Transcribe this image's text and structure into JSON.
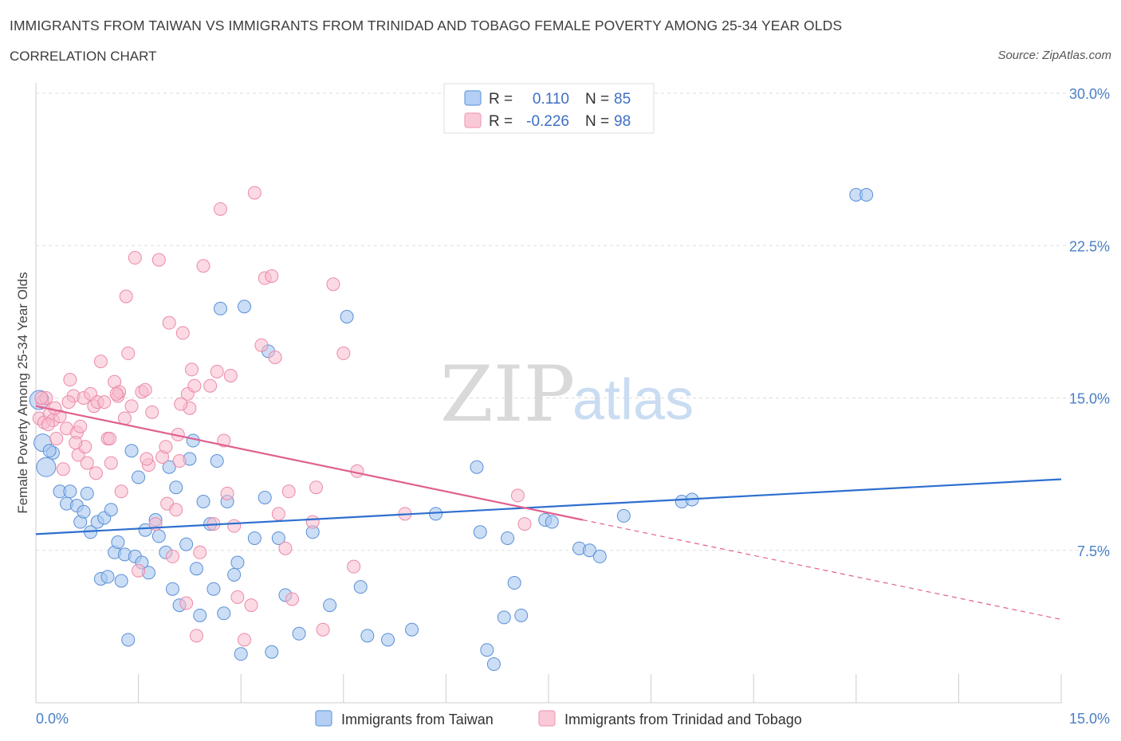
{
  "header": {
    "title": "IMMIGRANTS FROM TAIWAN VS IMMIGRANTS FROM TRINIDAD AND TOBAGO FEMALE POVERTY AMONG 25-34 YEAR OLDS",
    "subtitle": "CORRELATION CHART",
    "source": "Source: ZipAtlas.com"
  },
  "watermark": {
    "zip": "ZIP",
    "atlas": "atlas"
  },
  "legend": {
    "r_label": "R =",
    "n_label": "N =",
    "series": [
      {
        "r": "0.110",
        "n": "85",
        "color": "#6a9fe0"
      },
      {
        "r": "-0.226",
        "n": "98",
        "color": "#f0a0b8"
      }
    ]
  },
  "colors": {
    "taiwan_fill": "#a9c8f0",
    "taiwan_stroke": "#5b8fd6",
    "taiwan_line": "#2e6fcf",
    "trinidad_fill": "#f7bccd",
    "trinidad_stroke": "#ec8aa8",
    "trinidad_line": "#e0608e",
    "grid": "#dddddd",
    "tick_text": "#4a7fc8"
  },
  "chart_data": {
    "type": "scatter",
    "xlabel": "",
    "ylabel": "Female Poverty Among 25-34 Year Olds",
    "xlim": [
      0,
      15
    ],
    "ylim": [
      0,
      30
    ],
    "x_tick_labels": [
      "0.0%",
      "15.0%"
    ],
    "y_tick_labels": [
      "7.5%",
      "15.0%",
      "22.5%",
      "30.0%"
    ],
    "y_tick_values": [
      7.5,
      15,
      22.5,
      30
    ],
    "grid": true,
    "legend_position": "top-center",
    "series": [
      {
        "name": "Immigrants from Taiwan",
        "trend": {
          "x": [
            0,
            15
          ],
          "y": [
            8.3,
            11.0
          ]
        },
        "points": [
          [
            0.05,
            14.9
          ],
          [
            0.1,
            12.8
          ],
          [
            0.15,
            11.6
          ],
          [
            0.25,
            12.3
          ],
          [
            0.35,
            10.4
          ],
          [
            0.45,
            9.8
          ],
          [
            0.5,
            10.4
          ],
          [
            0.6,
            9.7
          ],
          [
            0.65,
            8.9
          ],
          [
            0.7,
            9.4
          ],
          [
            0.75,
            10.3
          ],
          [
            0.8,
            8.4
          ],
          [
            0.9,
            8.9
          ],
          [
            0.95,
            6.1
          ],
          [
            1.0,
            9.1
          ],
          [
            1.1,
            9.5
          ],
          [
            1.15,
            7.4
          ],
          [
            1.2,
            7.9
          ],
          [
            1.25,
            6.0
          ],
          [
            1.3,
            7.3
          ],
          [
            1.35,
            3.1
          ],
          [
            1.4,
            12.4
          ],
          [
            1.45,
            7.2
          ],
          [
            1.5,
            11.1
          ],
          [
            1.55,
            6.9
          ],
          [
            1.6,
            8.5
          ],
          [
            1.65,
            6.4
          ],
          [
            1.75,
            9.0
          ],
          [
            1.8,
            8.2
          ],
          [
            1.9,
            7.4
          ],
          [
            1.95,
            11.6
          ],
          [
            2.0,
            5.6
          ],
          [
            2.05,
            10.6
          ],
          [
            2.1,
            4.8
          ],
          [
            2.2,
            7.8
          ],
          [
            2.25,
            12.0
          ],
          [
            2.3,
            12.9
          ],
          [
            2.35,
            6.6
          ],
          [
            2.4,
            4.3
          ],
          [
            2.45,
            9.9
          ],
          [
            2.55,
            8.8
          ],
          [
            2.6,
            5.6
          ],
          [
            2.65,
            11.9
          ],
          [
            2.7,
            19.4
          ],
          [
            2.75,
            4.4
          ],
          [
            2.8,
            9.9
          ],
          [
            2.9,
            6.3
          ],
          [
            2.95,
            6.9
          ],
          [
            3.0,
            2.4
          ],
          [
            3.05,
            19.5
          ],
          [
            3.2,
            8.1
          ],
          [
            3.35,
            10.1
          ],
          [
            3.4,
            17.3
          ],
          [
            3.45,
            2.5
          ],
          [
            3.55,
            8.1
          ],
          [
            3.65,
            5.3
          ],
          [
            3.85,
            3.4
          ],
          [
            4.05,
            8.4
          ],
          [
            4.3,
            4.8
          ],
          [
            4.55,
            19.0
          ],
          [
            4.75,
            5.7
          ],
          [
            4.85,
            3.3
          ],
          [
            5.15,
            3.1
          ],
          [
            5.5,
            3.6
          ],
          [
            5.85,
            9.3
          ],
          [
            6.45,
            11.6
          ],
          [
            6.5,
            8.4
          ],
          [
            6.6,
            2.6
          ],
          [
            6.7,
            1.9
          ],
          [
            6.85,
            4.2
          ],
          [
            6.9,
            8.1
          ],
          [
            7.0,
            5.9
          ],
          [
            7.1,
            4.3
          ],
          [
            7.45,
            9.0
          ],
          [
            7.55,
            8.9
          ],
          [
            7.95,
            7.6
          ],
          [
            8.1,
            7.5
          ],
          [
            8.25,
            7.2
          ],
          [
            8.6,
            9.2
          ],
          [
            9.45,
            9.9
          ],
          [
            9.6,
            10.0
          ],
          [
            12.0,
            25.0
          ],
          [
            12.15,
            25.0
          ],
          [
            0.2,
            12.4
          ],
          [
            1.05,
            6.2
          ]
        ]
      },
      {
        "name": "Immigrants from Trinidad and Tobago",
        "trend": {
          "x": [
            0,
            8.0
          ],
          "y": [
            14.6,
            9.0
          ]
        },
        "trend_extension": {
          "x": [
            8.0,
            15
          ],
          "y": [
            9.0,
            4.1
          ]
        },
        "points": [
          [
            0.05,
            14.0
          ],
          [
            0.1,
            14.8
          ],
          [
            0.12,
            13.8
          ],
          [
            0.15,
            15.0
          ],
          [
            0.2,
            14.2
          ],
          [
            0.25,
            13.9
          ],
          [
            0.3,
            13.0
          ],
          [
            0.35,
            14.1
          ],
          [
            0.4,
            11.5
          ],
          [
            0.45,
            13.5
          ],
          [
            0.5,
            15.9
          ],
          [
            0.55,
            15.1
          ],
          [
            0.6,
            13.3
          ],
          [
            0.62,
            12.2
          ],
          [
            0.65,
            13.6
          ],
          [
            0.7,
            15.0
          ],
          [
            0.72,
            12.6
          ],
          [
            0.75,
            11.8
          ],
          [
            0.8,
            15.2
          ],
          [
            0.85,
            14.6
          ],
          [
            0.88,
            11.3
          ],
          [
            0.9,
            14.8
          ],
          [
            0.95,
            16.8
          ],
          [
            1.0,
            14.8
          ],
          [
            1.05,
            13.0
          ],
          [
            1.08,
            13.0
          ],
          [
            1.1,
            11.8
          ],
          [
            1.15,
            15.8
          ],
          [
            1.2,
            15.1
          ],
          [
            1.22,
            15.3
          ],
          [
            1.25,
            10.4
          ],
          [
            1.3,
            14.0
          ],
          [
            1.32,
            20.0
          ],
          [
            1.35,
            17.2
          ],
          [
            1.4,
            14.6
          ],
          [
            1.45,
            21.9
          ],
          [
            1.5,
            6.5
          ],
          [
            1.55,
            15.3
          ],
          [
            1.6,
            15.4
          ],
          [
            1.65,
            11.7
          ],
          [
            1.7,
            14.3
          ],
          [
            1.75,
            8.8
          ],
          [
            1.8,
            21.8
          ],
          [
            1.85,
            12.1
          ],
          [
            1.9,
            12.6
          ],
          [
            1.92,
            9.8
          ],
          [
            1.95,
            18.7
          ],
          [
            2.0,
            7.2
          ],
          [
            2.05,
            9.5
          ],
          [
            2.08,
            13.2
          ],
          [
            2.1,
            11.9
          ],
          [
            2.15,
            18.2
          ],
          [
            2.2,
            4.9
          ],
          [
            2.22,
            15.2
          ],
          [
            2.25,
            14.5
          ],
          [
            2.28,
            16.4
          ],
          [
            2.32,
            15.6
          ],
          [
            2.35,
            3.3
          ],
          [
            2.4,
            7.4
          ],
          [
            2.45,
            21.5
          ],
          [
            2.55,
            15.6
          ],
          [
            2.6,
            8.8
          ],
          [
            2.65,
            16.3
          ],
          [
            2.7,
            24.3
          ],
          [
            2.75,
            12.9
          ],
          [
            2.8,
            10.3
          ],
          [
            2.85,
            16.1
          ],
          [
            2.9,
            8.7
          ],
          [
            2.95,
            5.2
          ],
          [
            3.05,
            3.1
          ],
          [
            3.15,
            4.8
          ],
          [
            3.2,
            25.1
          ],
          [
            3.3,
            17.6
          ],
          [
            3.35,
            20.9
          ],
          [
            3.45,
            21.0
          ],
          [
            3.5,
            17.0
          ],
          [
            3.55,
            9.3
          ],
          [
            3.65,
            7.6
          ],
          [
            3.7,
            10.4
          ],
          [
            3.75,
            5.1
          ],
          [
            4.05,
            8.9
          ],
          [
            4.1,
            10.6
          ],
          [
            4.2,
            3.6
          ],
          [
            4.35,
            20.6
          ],
          [
            4.5,
            17.2
          ],
          [
            4.65,
            6.7
          ],
          [
            4.7,
            11.4
          ],
          [
            5.4,
            9.3
          ],
          [
            7.05,
            10.2
          ],
          [
            7.15,
            8.8
          ],
          [
            0.18,
            13.7
          ],
          [
            0.28,
            14.5
          ],
          [
            0.48,
            14.8
          ],
          [
            0.58,
            12.8
          ],
          [
            1.18,
            15.2
          ],
          [
            1.62,
            12.0
          ],
          [
            2.12,
            14.7
          ],
          [
            0.08,
            15.0
          ]
        ]
      }
    ]
  },
  "bottom_legend": {
    "items": [
      "Immigrants from Taiwan",
      "Immigrants from Trinidad and Tobago"
    ]
  }
}
